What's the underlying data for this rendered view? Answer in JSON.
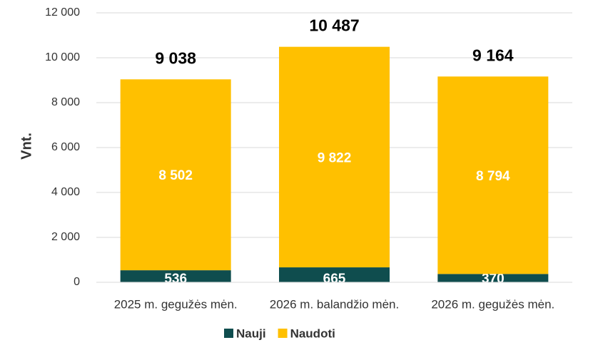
{
  "chart_data": {
    "type": "stacked_bar",
    "ylabel": "Vnt.",
    "categories": [
      "2025 m. gegužės mėn.",
      "2026 m. balandžio mėn.",
      "2026 m. gegužės mėn."
    ],
    "series": [
      {
        "name": "Nauji",
        "color": "#0f4d4e",
        "values": [
          536,
          665,
          370
        ],
        "value_labels": [
          "536",
          "665",
          "370"
        ]
      },
      {
        "name": "Naudoti",
        "color": "#ffc000",
        "values": [
          8502,
          9822,
          8794
        ],
        "value_labels": [
          "8 502",
          "9 822",
          "8 794"
        ]
      }
    ],
    "totals": [
      9038,
      10487,
      9164
    ],
    "total_labels": [
      "9 038",
      "10 487",
      "9 164"
    ],
    "ylim": [
      0,
      12000
    ],
    "yticks": [
      0,
      {
        "value": 2000,
        "label": "2 000"
      },
      {
        "value": 4000,
        "label": "4 000"
      },
      {
        "value": 6000,
        "label": "6 000"
      },
      {
        "value": 8000,
        "label": "8 000"
      },
      {
        "value": 10000,
        "label": "10 000"
      },
      {
        "value": 12000,
        "label": "12 000"
      }
    ],
    "grid": true,
    "legend": "bottom"
  }
}
